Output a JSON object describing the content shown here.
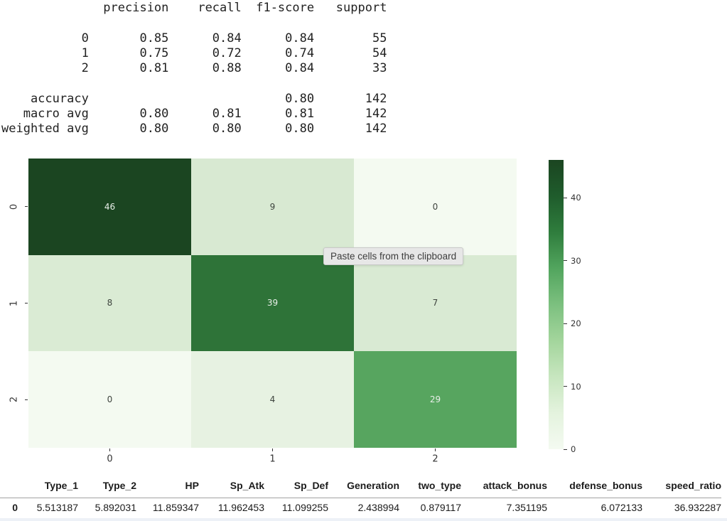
{
  "report": {
    "text": "              precision    recall  f1-score   support\n\n           0       0.85      0.84      0.84        55\n           1       0.75      0.72      0.74        54\n           2       0.81      0.88      0.84        33\n\n    accuracy                           0.80       142\n   macro avg       0.80      0.81      0.81       142\nweighted avg       0.80      0.80      0.80       142"
  },
  "tooltip": {
    "text": "Paste cells from the clipboard"
  },
  "chart_data": {
    "type": "heatmap",
    "title": "",
    "xlabel": "",
    "ylabel": "",
    "x_labels": [
      "0",
      "1",
      "2"
    ],
    "y_labels": [
      "0",
      "1",
      "2"
    ],
    "matrix": [
      [
        46,
        9,
        0
      ],
      [
        8,
        39,
        7
      ],
      [
        0,
        4,
        29
      ]
    ],
    "cell_colors": [
      [
        "#1b4521",
        "#d8e9d2",
        "#f4faf1"
      ],
      [
        "#daebd4",
        "#2e7338",
        "#d9ead3"
      ],
      [
        "#f4faf1",
        "#e7f2e2",
        "#57a55f"
      ]
    ],
    "annot_light": "#e9efe9",
    "annot_dark": "#3d433d",
    "colorbar": {
      "vmin": 0,
      "vmax": 46,
      "ticks": [
        "0",
        "10",
        "20",
        "30",
        "40"
      ],
      "tick_values": [
        0,
        10,
        20,
        30,
        40
      ],
      "gradient_bottom_to_top": [
        "#f4faf1",
        "#e4f3de",
        "#c7e6bf",
        "#a3d59c",
        "#7cc07f",
        "#52a55e",
        "#2f7d3d",
        "#1f5c2c",
        "#1b4521"
      ]
    },
    "legend_position": "right",
    "grid": false
  },
  "table": {
    "index_header": "",
    "columns": [
      "Type_1",
      "Type_2",
      "HP",
      "Sp_Atk",
      "Sp_Def",
      "Generation",
      "two_type",
      "attack_bonus",
      "defense_bonus",
      "speed_ratio"
    ],
    "rows": [
      {
        "index": "0",
        "values": [
          "5.513187",
          "5.892031",
          "11.859347",
          "11.962453",
          "11.099255",
          "2.438994",
          "0.879117",
          "7.351195",
          "6.072133",
          "36.932287"
        ]
      }
    ]
  }
}
